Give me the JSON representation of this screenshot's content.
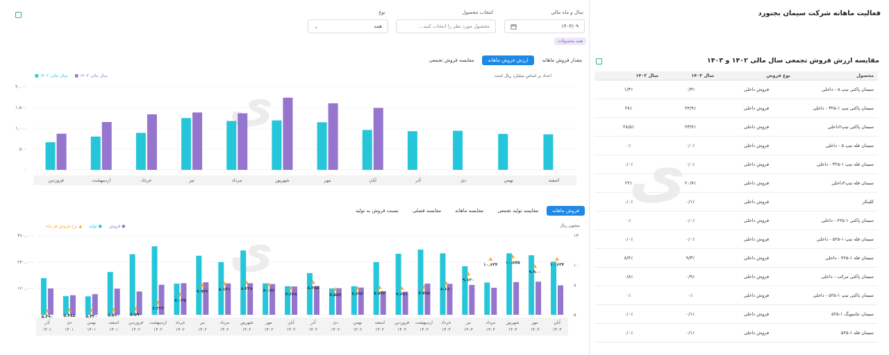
{
  "page_title": "فعالیت ماهانه شرکت سیمان بجنورد",
  "filters": {
    "year_month_label": "سال و ماه مالی",
    "year_month_value": "۱۴۰۳/۰۹",
    "product_label": "انتخاب محصول",
    "product_placeholder": "محصول مورد نظر را انتخاب کنید...",
    "type_label": "نوع",
    "type_value": "همه",
    "all_products_chip": "همه محصولات"
  },
  "colors": {
    "cyan": "#26c6da",
    "purple": "#9575cd",
    "orange": "#ffa726",
    "blue": "#1e88e5"
  },
  "top_tabs": [
    "مقدار فروش ماهانه",
    "ارزش فروش ماهانه",
    "مقایسه فروش تجمعی"
  ],
  "top_tabs_active": 1,
  "top_chart_note": "اعداد بر اساس میلیارد ریال است",
  "chart_data": [
    {
      "type": "bar",
      "categories": [
        "فروردین",
        "اردیبهشت",
        "خرداد",
        "تیر",
        "مرداد",
        "شهریور",
        "مهر",
        "آبان",
        "آذر",
        "دی",
        "بهمن",
        "اسفند"
      ],
      "series": [
        {
          "name": "سال مالی ۱۴۰۲",
          "values": [
            665,
            800,
            890,
            1245,
            1175,
            1190,
            1145,
            960,
            930,
            940,
            865,
            855
          ]
        },
        {
          "name": "سال مالی ۱۴۰۳",
          "values": [
            870,
            1150,
            1335,
            1380,
            1360,
            1735,
            1600,
            1490,
            null,
            null,
            null,
            null
          ]
        }
      ],
      "y_ticks": [
        "۰",
        "۵۰۰",
        "۱,۰۰۰",
        "۱,۵۰۰",
        "۲,۰۰۰"
      ],
      "ylim": [
        0,
        2000
      ],
      "legend_position": "top-left"
    },
    {
      "type": "bar",
      "categories": [
        "آذر ۱۴۰۱",
        "دی ۱۴۰۱",
        "بهمن ۱۴۰۱",
        "اسفند ۱۴۰۱",
        "فروردین ۱۴۰۲",
        "اردیبهشت ۱۴۰۲",
        "خرداد ۱۴۰۲",
        "تیر ۱۴۰۲",
        "مرداد ۱۴۰۲",
        "شهریور ۱۴۰۲",
        "مهر ۱۴۰۲",
        "آبان ۱۴۰۲",
        "آذر ۱۴۰۲",
        "دی ۱۴۰۲",
        "بهمن ۱۴۰۲",
        "اسفند ۱۴۰۲",
        "فروردین ۱۴۰۳",
        "اردیبهشت ۱۴۰۳",
        "خرداد ۱۴۰۳",
        "تیر ۱۴۰۳",
        "مرداد ۱۴۰۳",
        "شهریور ۱۴۰۳",
        "مهر ۱۴۰۳",
        "آبان ۱۴۰۳"
      ],
      "category_month": [
        "آذر",
        "دی",
        "بهمن",
        "اسفند",
        "فروردین",
        "اردیبهشت",
        "خرداد",
        "تیر",
        "مرداد",
        "شهریور",
        "مهر",
        "آبان",
        "آذر",
        "دی",
        "بهمن",
        "اسفند",
        "فروردین",
        "اردیبهشت",
        "خرداد",
        "تیر",
        "مرداد",
        "شهریور",
        "مهر",
        "آبان"
      ],
      "category_year": [
        "۱۴۰۱",
        "۱۴۰۱",
        "۱۴۰۱",
        "۱۴۰۱",
        "۱۴۰۲",
        "۱۴۰۲",
        "۱۴۰۲",
        "۱۴۰۲",
        "۱۴۰۲",
        "۱۴۰۲",
        "۱۴۰۲",
        "۱۴۰۲",
        "۱۴۰۲",
        "۱۴۰۲",
        "۱۴۰۲",
        "۱۴۰۲",
        "۱۴۰۳",
        "۱۴۰۳",
        "۱۴۰۳",
        "۱۴۰۳",
        "۱۴۰۳",
        "۱۴۰۳",
        "۱۴۰۳",
        "۱۴۰۳"
      ],
      "series": [
        {
          "name": "تولید",
          "values": [
            167000,
            85000,
            84000,
            195000,
            276000,
            312000,
            142000,
            269000,
            240000,
            293000,
            143000,
            130000,
            190000,
            120000,
            130000,
            240000,
            278000,
            297000,
            280000,
            221000,
            147000,
            280000,
            271000,
            242000
          ]
        },
        {
          "name": "فروش",
          "values": [
            120000,
            89000,
            94000,
            119000,
            106000,
            137000,
            144000,
            148000,
            143000,
            144000,
            140000,
            129000,
            131000,
            121000,
            124000,
            108000,
            105000,
            142000,
            141000,
            136000,
            123000,
            149000,
            151000,
            134000
          ]
        }
      ],
      "rate_series": {
        "name": "نرخ فروش هر ماه",
        "values": [
          5.39,
          5.485,
          5.43,
          5.51,
          5.59,
          6.223,
          7.035,
          7.946,
          8.141,
          8.238,
          8.056,
          7.678,
          8.285,
          7.587,
          7.693,
          7.742,
          7.671,
          7.785,
          8.18,
          9.12,
          10.634,
          10.875,
          9.9,
          10.634
        ]
      },
      "rate_labels": [
        "۵.۳۹۰",
        "۵.۴۸۵",
        "۵.۴۳۰",
        "۵.۵۱۰",
        "۵.۵۹۰",
        "۶.۲۲۳",
        "۷.۰۳۵",
        "۷.۹۴۶",
        "۸.۱۴۱",
        "۸.۲۳۸",
        "۸.۰۵۶",
        "۷.۶۷۸",
        "۸.۲۸۵",
        "۷.۵۸۷",
        "۷.۶۹۳",
        "۷.۷۴۲",
        "۷.۶۷۱",
        "۷.۷۸۵",
        "۸.۱۸۰",
        "۹.۱۲۰",
        "۱۰.۶۳۴",
        "۱۰.۸۷۵",
        "۹.۹۰۰",
        "۱۰.۶۳۴"
      ],
      "y_ticks_left": [
        "۰",
        "۱۲۰,۰۰۰",
        "۲۴۰,۰۰۰",
        "۳۶۰,۰۰۰"
      ],
      "ylim_left": [
        0,
        360000
      ],
      "y_ticks_right": [
        "۵",
        "۸",
        "۱۰",
        "۱۳"
      ],
      "ylim_right": [
        5,
        13
      ],
      "ylabel_right": "میلیون ریال",
      "legend_position": "top-left"
    }
  ],
  "bottom_tabs": [
    "فروش ماهانه",
    "مقایسه تولید تجمعی",
    "مقایسه ماهانه",
    "مقایسه فصلی",
    "نسبت فروش به تولید"
  ],
  "bottom_tabs_active": 0,
  "table": {
    "title": "مقایسه ارزش فروش تجمعی سال مالی ۱۴۰۲ و ۱۴۰۳",
    "headers": [
      "محصول",
      "نوع فروش",
      "سال ۱۴۰۳",
      "سال ۱۴۰۲"
    ],
    "rows": [
      [
        "سیمان پاکتی تیپ ۵ - داخلی",
        "فروش داخلی",
        "۰/۳٪",
        "۱/۳٪"
      ],
      [
        "سیمان پاکتی تیپ ۱-۳۲۵ - داخلی",
        "فروش داخلی",
        "۲۴/۹٪",
        "۲۸٪"
      ],
      [
        "سیمان پاکتی تیپ۲داخلی",
        "فروش داخلی",
        "۲۳/۴٪",
        "۲۸/۵٪"
      ],
      [
        "سیمان فله تیپ ۵ - داخلی",
        "فروش داخلی",
        "۰/۰٪",
        "۰٪"
      ],
      [
        "سیمان فله تیپ ۱-۳۲۵ - داخلی",
        "فروش داخلی",
        "۰/۰٪",
        "۰/۰٪"
      ],
      [
        "سیمان فله تیپ۲داخلی",
        "فروش داخلی",
        "۲۰/۷٪",
        "۲۲٪"
      ],
      [
        "کلینکر",
        "فروش داخلی",
        "۰/۱٪",
        "۰/۰٪"
      ],
      [
        "سیمان پاکتی ۱-۴۲۵ - داخلی",
        "فروش داخلی",
        "۰/۰٪",
        "۰٪"
      ],
      [
        "سیمان فله تیپ ۱-۵۲۵ - داخلی",
        "فروش داخلی",
        "۰/۰٪",
        "۰/۰٪"
      ],
      [
        "سیمان فله ۱-۴۲۵ - داخلی",
        "فروش داخلی",
        "۹/۳٪",
        "۸/۴٪"
      ],
      [
        "سیمان پاکتی مرکب - داخلی",
        "فروش داخلی",
        "۰/۹٪",
        "۰/۸٪"
      ],
      [
        "سیمان پاکتی تیپ ۱-۵۲۵ - داخلی",
        "فروش داخلی",
        "۰٪",
        "۰٪"
      ],
      [
        "سیمان جامبوبگ ۱-۵۲۵",
        "فروش داخلی",
        "۰/۱٪",
        "۰/۰٪"
      ],
      [
        "سیمان فله ۱-۵۲۵",
        "فروش داخلی",
        "۰/۱٪",
        "۰/۰٪"
      ]
    ]
  }
}
